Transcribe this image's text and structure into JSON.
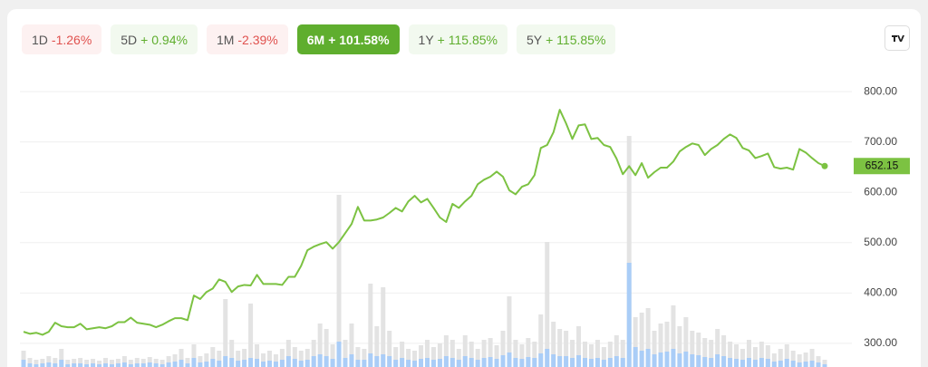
{
  "tabs": [
    {
      "range": "1D",
      "change": "-1.26%",
      "color": "#e0524f",
      "active": false
    },
    {
      "range": "5D",
      "change": "+ 0.94%",
      "color": "#5fae2e",
      "active": false
    },
    {
      "range": "1M",
      "change": "-2.39%",
      "color": "#e0524f",
      "active": false
    },
    {
      "range": "6M",
      "change": "+ 101.58%",
      "color": "#5fae2e",
      "active": true
    },
    {
      "range": "1Y",
      "change": "+ 115.85%",
      "color": "#5fae2e",
      "active": false
    },
    {
      "range": "5Y",
      "change": "+ 115.85%",
      "color": "#5fae2e",
      "active": false
    }
  ],
  "chart_data": {
    "type": "line",
    "series": [
      {
        "name": "Price",
        "color": "#7cc242",
        "values": [
          323,
          319,
          321,
          317,
          323,
          341,
          334,
          332,
          332,
          339,
          328,
          330,
          332,
          330,
          334,
          342,
          342,
          351,
          341,
          339,
          337,
          332,
          337,
          344,
          350,
          350,
          346,
          395,
          388,
          402,
          409,
          427,
          422,
          402,
          413,
          416,
          415,
          436,
          418,
          418,
          418,
          416,
          432,
          432,
          454,
          485,
          492,
          497,
          501,
          488,
          501,
          519,
          537,
          571,
          544,
          544,
          546,
          550,
          559,
          569,
          562,
          582,
          593,
          580,
          587,
          569,
          550,
          541,
          577,
          569,
          582,
          593,
          616,
          625,
          631,
          641,
          631,
          604,
          596,
          611,
          616,
          634,
          688,
          694,
          719,
          764,
          737,
          706,
          733,
          735,
          706,
          708,
          694,
          690,
          667,
          636,
          652,
          634,
          658,
          629,
          640,
          649,
          649,
          661,
          681,
          690,
          697,
          694,
          674,
          686,
          694,
          706,
          715,
          708,
          688,
          683,
          668,
          672,
          677,
          650,
          647,
          649,
          645,
          686,
          679,
          668,
          658,
          652.15
        ]
      }
    ],
    "volume": {
      "total_color": "#e3e3e3",
      "part_color": "#aacdf7",
      "total": [
        18,
        10,
        8,
        9,
        12,
        10,
        20,
        8,
        9,
        10,
        8,
        9,
        7,
        10,
        8,
        9,
        12,
        8,
        10,
        9,
        11,
        9,
        8,
        12,
        14,
        20,
        10,
        25,
        12,
        15,
        22,
        18,
        75,
        30,
        18,
        20,
        70,
        25,
        15,
        18,
        14,
        20,
        30,
        22,
        18,
        20,
        30,
        48,
        42,
        25,
        190,
        30,
        48,
        22,
        20,
        92,
        45,
        88,
        40,
        22,
        28,
        20,
        18,
        24,
        30,
        22,
        26,
        35,
        30,
        20,
        35,
        28,
        20,
        30,
        32,
        24,
        40,
        78,
        30,
        25,
        32,
        28,
        58,
        138,
        50,
        42,
        40,
        30,
        45,
        28,
        25,
        30,
        22,
        28,
        35,
        30,
        255,
        55,
        60,
        65,
        40,
        48,
        50,
        68,
        45,
        55,
        40,
        38,
        32,
        30,
        42,
        35,
        28,
        25,
        20,
        30,
        22,
        28,
        24,
        15,
        20,
        25,
        18,
        14,
        16,
        20,
        12,
        8
      ],
      "part": [
        8,
        4,
        3,
        4,
        5,
        4,
        8,
        3,
        4,
        4,
        3,
        4,
        3,
        4,
        3,
        4,
        5,
        3,
        4,
        4,
        5,
        4,
        3,
        5,
        6,
        8,
        4,
        10,
        5,
        6,
        9,
        7,
        12,
        10,
        7,
        8,
        10,
        9,
        6,
        7,
        6,
        8,
        12,
        9,
        7,
        8,
        12,
        14,
        12,
        9,
        28,
        10,
        14,
        8,
        8,
        15,
        12,
        14,
        12,
        8,
        10,
        8,
        7,
        9,
        10,
        8,
        9,
        12,
        10,
        8,
        12,
        10,
        8,
        10,
        11,
        9,
        13,
        16,
        10,
        9,
        11,
        10,
        15,
        20,
        14,
        12,
        12,
        10,
        13,
        10,
        9,
        10,
        8,
        10,
        12,
        10,
        115,
        22,
        18,
        20,
        14,
        16,
        17,
        20,
        15,
        17,
        14,
        13,
        11,
        10,
        14,
        12,
        10,
        9,
        8,
        10,
        8,
        10,
        9,
        6,
        7,
        9,
        7,
        5,
        6,
        7,
        5,
        3
      ]
    },
    "ylim": [
      253,
      820
    ],
    "yticks": [
      {
        "value": 300,
        "label": "300.00"
      },
      {
        "value": 400,
        "label": "400.00"
      },
      {
        "value": 500,
        "label": "500.00"
      },
      {
        "value": 600,
        "label": "600.00"
      },
      {
        "value": 700,
        "label": "700.00"
      },
      {
        "value": 800,
        "label": "800.00"
      }
    ],
    "grid": true
  }
}
